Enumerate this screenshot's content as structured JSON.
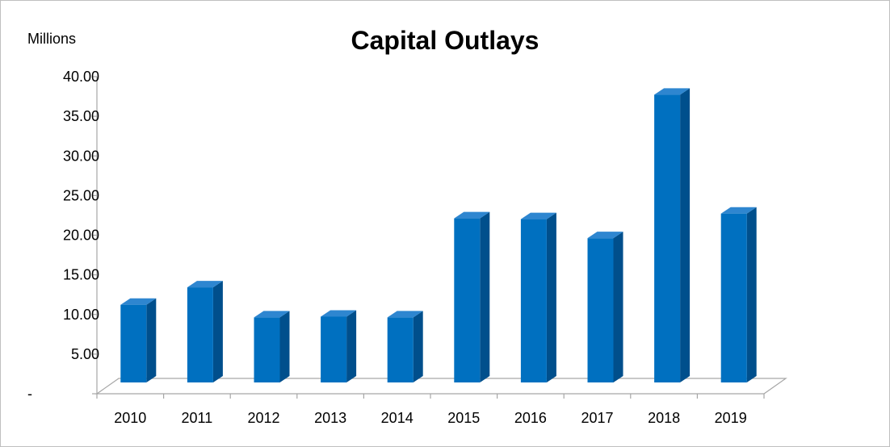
{
  "chart_data": {
    "type": "bar",
    "title": "Capital Outlays",
    "unit_label": "Millions",
    "xlabel": "",
    "ylabel": "",
    "categories": [
      "2010",
      "2011",
      "2012",
      "2013",
      "2014",
      "2015",
      "2016",
      "2017",
      "2018",
      "2019"
    ],
    "values": [
      9.8,
      12.0,
      8.2,
      8.3,
      8.2,
      20.7,
      20.6,
      18.2,
      36.3,
      21.3
    ],
    "ylim": [
      0,
      40
    ],
    "yticks": [
      0,
      5,
      10,
      15,
      20,
      25,
      30,
      35,
      40
    ],
    "ytick_labels": [
      "-",
      "5.00",
      "10.00",
      "15.00",
      "20.00",
      "25.00",
      "30.00",
      "35.00",
      "40.00"
    ],
    "grid": false,
    "style": "3d-bar",
    "colors": {
      "bar_front": "#0070c0",
      "bar_side": "#004f8c",
      "bar_top": "#2e86d0",
      "axis": "#a6a6a6"
    }
  }
}
